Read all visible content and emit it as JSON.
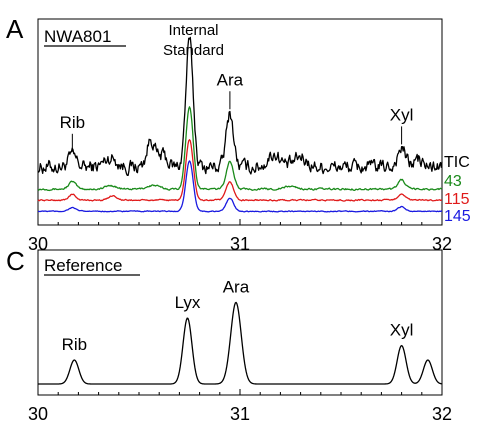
{
  "chart_data": [
    {
      "type": "line",
      "panel_letter": "A",
      "title": "NWA801",
      "xlim": [
        30,
        32
      ],
      "x_ticks": [
        "30",
        "31",
        "32"
      ],
      "series": [
        {
          "name": "TIC",
          "color": "#000000",
          "baseline": 0.26,
          "noise": 0.03,
          "peaks": [
            {
              "x": 30.17,
              "h": 0.06,
              "w": 0.02
            },
            {
              "x": 30.36,
              "h": 0.05,
              "w": 0.03
            },
            {
              "x": 30.56,
              "h": 0.15,
              "w": 0.02
            },
            {
              "x": 30.62,
              "h": 0.06,
              "w": 0.02
            },
            {
              "x": 30.75,
              "h": 0.68,
              "w": 0.018
            },
            {
              "x": 30.95,
              "h": 0.29,
              "w": 0.018
            },
            {
              "x": 31.17,
              "h": 0.07,
              "w": 0.03
            },
            {
              "x": 31.3,
              "h": 0.05,
              "w": 0.03
            },
            {
              "x": 31.8,
              "h": 0.1,
              "w": 0.02
            },
            {
              "x": 31.88,
              "h": 0.04,
              "w": 0.02
            }
          ]
        },
        {
          "name": "43",
          "color": "#1a8a1a",
          "baseline": 0.14,
          "noise": 0.004,
          "peaks": [
            {
              "x": 30.17,
              "h": 0.04,
              "w": 0.018
            },
            {
              "x": 30.36,
              "h": 0.02,
              "w": 0.025
            },
            {
              "x": 30.57,
              "h": 0.02,
              "w": 0.03
            },
            {
              "x": 30.75,
              "h": 0.45,
              "w": 0.018
            },
            {
              "x": 30.95,
              "h": 0.15,
              "w": 0.018
            },
            {
              "x": 31.25,
              "h": 0.015,
              "w": 0.03
            },
            {
              "x": 31.8,
              "h": 0.05,
              "w": 0.018
            }
          ]
        },
        {
          "name": "115",
          "color": "#e01a1a",
          "baseline": 0.08,
          "noise": 0.003,
          "peaks": [
            {
              "x": 30.17,
              "h": 0.03,
              "w": 0.018
            },
            {
              "x": 30.37,
              "h": 0.025,
              "w": 0.02
            },
            {
              "x": 30.75,
              "h": 0.33,
              "w": 0.018
            },
            {
              "x": 30.95,
              "h": 0.1,
              "w": 0.018
            },
            {
              "x": 31.8,
              "h": 0.035,
              "w": 0.018
            }
          ]
        },
        {
          "name": "145",
          "color": "#1a1ae0",
          "baseline": 0.02,
          "noise": 0.002,
          "peaks": [
            {
              "x": 30.17,
              "h": 0.02,
              "w": 0.018
            },
            {
              "x": 30.75,
              "h": 0.27,
              "w": 0.018
            },
            {
              "x": 30.95,
              "h": 0.07,
              "w": 0.018
            },
            {
              "x": 31.8,
              "h": 0.025,
              "w": 0.018
            }
          ]
        }
      ],
      "annotations": [
        {
          "text": "Rib",
          "x": 30.17
        },
        {
          "text": "Ara",
          "x": 30.95
        },
        {
          "text": "Xyl",
          "x": 31.8
        }
      ],
      "internal_standard": {
        "line1": "Internal",
        "line2": "Standard",
        "x": 30.75
      }
    },
    {
      "type": "line",
      "panel_letter": "C",
      "title": "Reference",
      "xlim": [
        30,
        32
      ],
      "x_ticks": [
        "30",
        "31",
        "32"
      ],
      "series": [
        {
          "name": "",
          "color": "#000000",
          "baseline": 0.05,
          "noise": 0.0,
          "peaks": [
            {
              "x": 30.18,
              "h": 0.2,
              "w": 0.022
            },
            {
              "x": 30.74,
              "h": 0.55,
              "w": 0.022
            },
            {
              "x": 30.98,
              "h": 0.68,
              "w": 0.026
            },
            {
              "x": 31.8,
              "h": 0.32,
              "w": 0.022
            },
            {
              "x": 31.93,
              "h": 0.2,
              "w": 0.022
            }
          ]
        }
      ],
      "annotations": [
        {
          "text": "Rib",
          "x": 30.18
        },
        {
          "text": "Lyx",
          "x": 30.74
        },
        {
          "text": "Ara",
          "x": 30.98
        },
        {
          "text": "Xyl",
          "x": 31.8
        }
      ]
    }
  ]
}
